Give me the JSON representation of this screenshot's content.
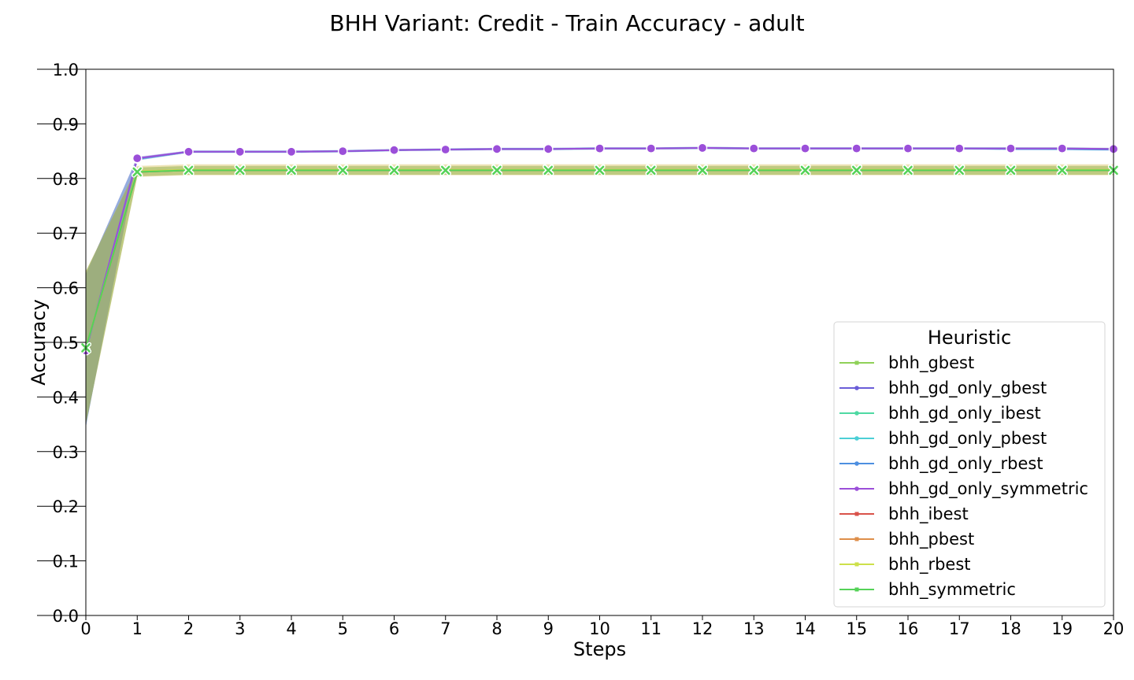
{
  "chart_data": {
    "type": "line",
    "title": "BHH Variant: Credit - Train Accuracy - adult",
    "xlabel": "Steps",
    "ylabel": "Accuracy",
    "xlim": [
      0,
      20
    ],
    "ylim": [
      0.0,
      1.0
    ],
    "x": [
      0,
      1,
      2,
      3,
      4,
      5,
      6,
      7,
      8,
      9,
      10,
      11,
      12,
      13,
      14,
      15,
      16,
      17,
      18,
      19,
      20
    ],
    "xticks": [
      "0",
      "1",
      "2",
      "3",
      "4",
      "5",
      "6",
      "7",
      "8",
      "9",
      "10",
      "11",
      "12",
      "13",
      "14",
      "15",
      "16",
      "17",
      "18",
      "19",
      "20"
    ],
    "yticks": [
      "0.0",
      "0.1",
      "0.2",
      "0.3",
      "0.4",
      "0.5",
      "0.6",
      "0.7",
      "0.8",
      "0.9",
      "1.0"
    ],
    "grid": false,
    "legend": {
      "title": "Heuristic",
      "placement": "lower-right"
    },
    "series": [
      {
        "name": "bhh_gbest",
        "color": "#8fd158",
        "marker": "x",
        "values": [
          0.49,
          0.812,
          0.815,
          0.815,
          0.815,
          0.815,
          0.815,
          0.815,
          0.815,
          0.815,
          0.815,
          0.815,
          0.815,
          0.815,
          0.815,
          0.815,
          0.815,
          0.815,
          0.815,
          0.815,
          0.815
        ],
        "band": [
          0.14,
          0.008,
          0.008,
          0.008,
          0.008,
          0.008,
          0.008,
          0.008,
          0.008,
          0.008,
          0.008,
          0.008,
          0.008,
          0.008,
          0.008,
          0.008,
          0.008,
          0.008,
          0.008,
          0.008,
          0.008
        ]
      },
      {
        "name": "bhh_gd_only_gbest",
        "color": "#6a5dd8",
        "marker": "o",
        "values": [
          0.485,
          0.836,
          0.849,
          0.849,
          0.849,
          0.85,
          0.852,
          0.853,
          0.854,
          0.854,
          0.855,
          0.855,
          0.856,
          0.855,
          0.855,
          0.855,
          0.855,
          0.855,
          0.855,
          0.855,
          0.854
        ],
        "band": [
          0.14,
          0.003,
          0.002,
          0.002,
          0.002,
          0.002,
          0.002,
          0.002,
          0.002,
          0.002,
          0.002,
          0.002,
          0.002,
          0.002,
          0.002,
          0.002,
          0.002,
          0.002,
          0.002,
          0.002,
          0.002
        ]
      },
      {
        "name": "bhh_gd_only_ibest",
        "color": "#4fd9a3",
        "marker": "o",
        "values": [
          0.485,
          0.836,
          0.849,
          0.849,
          0.849,
          0.85,
          0.852,
          0.853,
          0.854,
          0.854,
          0.855,
          0.855,
          0.856,
          0.855,
          0.855,
          0.855,
          0.855,
          0.855,
          0.855,
          0.855,
          0.854
        ],
        "band": [
          0.14,
          0.003,
          0.002,
          0.002,
          0.002,
          0.002,
          0.002,
          0.002,
          0.002,
          0.002,
          0.002,
          0.002,
          0.002,
          0.002,
          0.002,
          0.002,
          0.002,
          0.002,
          0.002,
          0.002,
          0.002
        ]
      },
      {
        "name": "bhh_gd_only_pbest",
        "color": "#4ccfd6",
        "marker": "o",
        "values": [
          0.485,
          0.836,
          0.849,
          0.849,
          0.849,
          0.85,
          0.852,
          0.853,
          0.854,
          0.854,
          0.855,
          0.855,
          0.856,
          0.855,
          0.855,
          0.855,
          0.855,
          0.855,
          0.855,
          0.854,
          0.853
        ],
        "band": [
          0.14,
          0.003,
          0.002,
          0.002,
          0.002,
          0.002,
          0.002,
          0.002,
          0.002,
          0.002,
          0.002,
          0.002,
          0.002,
          0.002,
          0.002,
          0.002,
          0.002,
          0.002,
          0.002,
          0.002,
          0.002
        ]
      },
      {
        "name": "bhh_gd_only_rbest",
        "color": "#4d8fe0",
        "marker": "o",
        "values": [
          0.485,
          0.836,
          0.849,
          0.849,
          0.849,
          0.85,
          0.852,
          0.853,
          0.854,
          0.854,
          0.855,
          0.855,
          0.856,
          0.855,
          0.855,
          0.855,
          0.855,
          0.855,
          0.854,
          0.854,
          0.853
        ],
        "band": [
          0.14,
          0.003,
          0.002,
          0.002,
          0.002,
          0.002,
          0.002,
          0.002,
          0.002,
          0.002,
          0.002,
          0.002,
          0.002,
          0.002,
          0.002,
          0.002,
          0.002,
          0.002,
          0.002,
          0.002,
          0.002
        ]
      },
      {
        "name": "bhh_gd_only_symmetric",
        "color": "#9b4fd9",
        "marker": "o",
        "values": [
          0.485,
          0.837,
          0.849,
          0.849,
          0.849,
          0.85,
          0.852,
          0.853,
          0.854,
          0.854,
          0.855,
          0.855,
          0.856,
          0.855,
          0.855,
          0.855,
          0.855,
          0.855,
          0.855,
          0.855,
          0.854
        ],
        "band": [
          0.14,
          0.003,
          0.002,
          0.002,
          0.002,
          0.002,
          0.002,
          0.002,
          0.002,
          0.002,
          0.002,
          0.002,
          0.002,
          0.002,
          0.002,
          0.002,
          0.002,
          0.002,
          0.002,
          0.002,
          0.002
        ]
      },
      {
        "name": "bhh_ibest",
        "color": "#d9524a",
        "marker": "x",
        "values": [
          0.49,
          0.812,
          0.815,
          0.815,
          0.815,
          0.815,
          0.815,
          0.815,
          0.815,
          0.815,
          0.815,
          0.815,
          0.815,
          0.815,
          0.815,
          0.815,
          0.815,
          0.815,
          0.815,
          0.815,
          0.815
        ],
        "band": [
          0.14,
          0.008,
          0.008,
          0.008,
          0.008,
          0.008,
          0.008,
          0.008,
          0.008,
          0.008,
          0.008,
          0.008,
          0.008,
          0.008,
          0.008,
          0.008,
          0.008,
          0.008,
          0.008,
          0.008,
          0.008
        ]
      },
      {
        "name": "bhh_pbest",
        "color": "#de8e4a",
        "marker": "x",
        "values": [
          0.49,
          0.813,
          0.816,
          0.816,
          0.816,
          0.816,
          0.816,
          0.816,
          0.816,
          0.816,
          0.816,
          0.816,
          0.816,
          0.816,
          0.816,
          0.816,
          0.816,
          0.816,
          0.816,
          0.816,
          0.816
        ],
        "band": [
          0.14,
          0.01,
          0.01,
          0.01,
          0.01,
          0.01,
          0.01,
          0.01,
          0.01,
          0.01,
          0.01,
          0.01,
          0.01,
          0.01,
          0.01,
          0.01,
          0.01,
          0.01,
          0.01,
          0.01,
          0.01
        ]
      },
      {
        "name": "bhh_rbest",
        "color": "#cde04a",
        "marker": "x",
        "values": [
          0.49,
          0.813,
          0.816,
          0.816,
          0.816,
          0.816,
          0.816,
          0.816,
          0.816,
          0.816,
          0.816,
          0.816,
          0.816,
          0.816,
          0.816,
          0.816,
          0.816,
          0.816,
          0.816,
          0.816,
          0.816
        ],
        "band": [
          0.14,
          0.01,
          0.01,
          0.01,
          0.01,
          0.01,
          0.01,
          0.01,
          0.01,
          0.01,
          0.01,
          0.01,
          0.01,
          0.01,
          0.01,
          0.01,
          0.01,
          0.01,
          0.01,
          0.01,
          0.01
        ]
      },
      {
        "name": "bhh_symmetric",
        "color": "#55d258",
        "marker": "x",
        "values": [
          0.49,
          0.812,
          0.815,
          0.815,
          0.815,
          0.815,
          0.815,
          0.815,
          0.815,
          0.815,
          0.815,
          0.815,
          0.815,
          0.815,
          0.815,
          0.815,
          0.815,
          0.815,
          0.815,
          0.815,
          0.815
        ],
        "band": [
          0.14,
          0.008,
          0.008,
          0.008,
          0.008,
          0.008,
          0.008,
          0.008,
          0.008,
          0.008,
          0.008,
          0.008,
          0.008,
          0.008,
          0.008,
          0.008,
          0.008,
          0.008,
          0.008,
          0.008,
          0.008
        ]
      }
    ]
  }
}
